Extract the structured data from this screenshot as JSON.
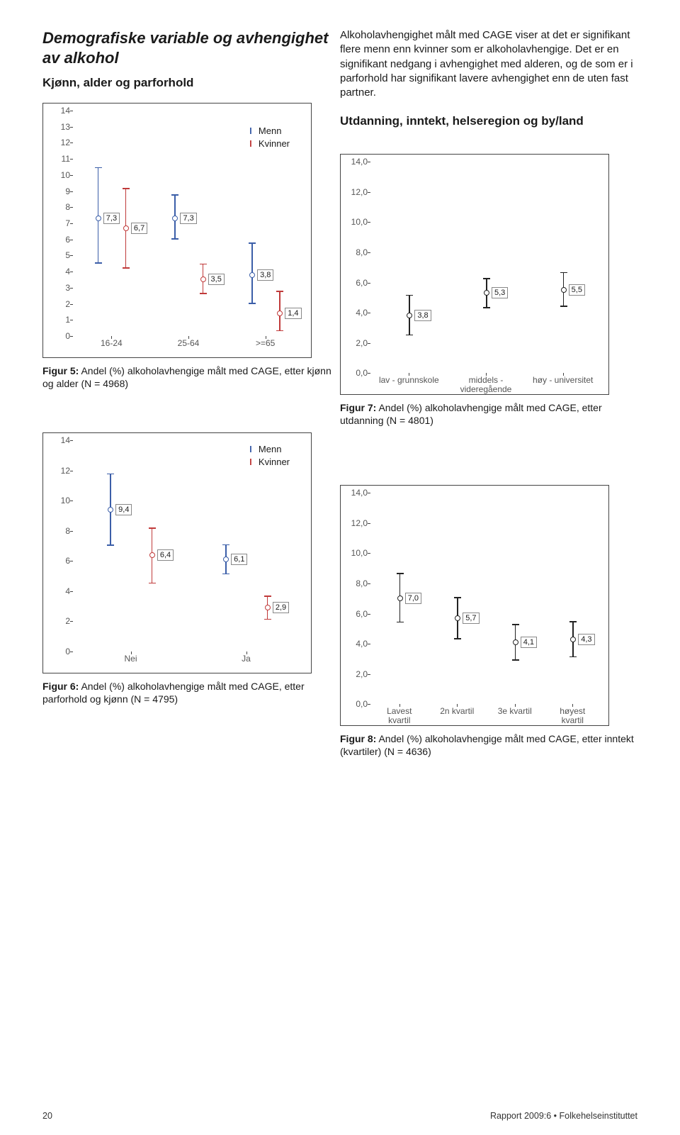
{
  "colors": {
    "menn": "#3b5ea8",
    "kvinner": "#c03a3a",
    "black": "#222222",
    "border": "#444444"
  },
  "header": {
    "main_title": "Demografiske variable og avhengighet av alkohol",
    "sub_title": "Kjønn, alder og parforhold"
  },
  "intro_text": "Alkoholavhengighet målt med CAGE viser at det er signifikant flere menn enn kvinner som er alkoholavhengige. Det er en signifikant nedgang i avhengighet med alderen, og de som er i parforhold har signifikant lavere avhengighet enn de uten fast partner.",
  "sub2": "Utdanning, inntekt, helseregion og by/land",
  "legend": {
    "menn": "Menn",
    "kvinner": "Kvinner"
  },
  "fig5": {
    "caption_bold": "Figur 5:",
    "caption_rest": " Andel (%) alkoholavhengige målt med CAGE, etter kjønn og alder (N = 4968)",
    "ylim": [
      0,
      14
    ],
    "ystep": 1,
    "x_labels": [
      "16-24",
      "25-64",
      ">=65"
    ],
    "series": [
      {
        "group": "menn",
        "x": 0,
        "val": 7.3,
        "lo": 4.5,
        "hi": 10.5,
        "label": "7,3"
      },
      {
        "group": "kvinner",
        "x": 0,
        "val": 6.7,
        "lo": 4.2,
        "hi": 9.2,
        "label": "6,7"
      },
      {
        "group": "menn",
        "x": 1,
        "val": 7.3,
        "lo": 6.0,
        "hi": 8.8,
        "label": "7,3"
      },
      {
        "group": "kvinner",
        "x": 1,
        "val": 3.5,
        "lo": 2.6,
        "hi": 4.5,
        "label": "3,5"
      },
      {
        "group": "menn",
        "x": 2,
        "val": 3.8,
        "lo": 2.0,
        "hi": 5.8,
        "label": "3,8"
      },
      {
        "group": "kvinner",
        "x": 2,
        "val": 1.4,
        "lo": 0.3,
        "hi": 2.8,
        "label": "1,4"
      }
    ]
  },
  "fig6": {
    "caption_bold": "Figur 6:",
    "caption_rest": " Andel (%) alkoholavhengige målt med CAGE, etter parforhold og kjønn (N = 4795)",
    "ylim": [
      0,
      14
    ],
    "ystep": 2,
    "x_labels": [
      "Nei",
      "Ja"
    ],
    "series": [
      {
        "group": "menn",
        "x": 0,
        "val": 9.4,
        "lo": 7.0,
        "hi": 11.8,
        "label": "9,4"
      },
      {
        "group": "kvinner",
        "x": 0,
        "val": 6.4,
        "lo": 4.5,
        "hi": 8.2,
        "label": "6,4"
      },
      {
        "group": "menn",
        "x": 1,
        "val": 6.1,
        "lo": 5.1,
        "hi": 7.1,
        "label": "6,1"
      },
      {
        "group": "kvinner",
        "x": 1,
        "val": 2.9,
        "lo": 2.1,
        "hi": 3.7,
        "label": "2,9"
      }
    ]
  },
  "fig7": {
    "caption_bold": "Figur 7:",
    "caption_rest": " Andel (%) alkoholavhengige målt med CAGE, etter utdanning (N = 4801)",
    "ylim": [
      0,
      14
    ],
    "ystep": 2,
    "decimal": true,
    "x_labels": [
      "lav - grunnskole",
      "middels -\nvideregående",
      "høy - universitet"
    ],
    "series": [
      {
        "group": "black",
        "x": 0,
        "val": 3.8,
        "lo": 2.5,
        "hi": 5.2,
        "label": "3,8"
      },
      {
        "group": "black",
        "x": 1,
        "val": 5.3,
        "lo": 4.3,
        "hi": 6.3,
        "label": "5,3"
      },
      {
        "group": "black",
        "x": 2,
        "val": 5.5,
        "lo": 4.4,
        "hi": 6.7,
        "label": "5,5"
      }
    ]
  },
  "fig8": {
    "caption_bold": "Figur 8:",
    "caption_rest": " Andel (%) alkoholavhengige målt med CAGE, etter inntekt (kvartiler) (N = 4636)",
    "ylim": [
      0,
      14
    ],
    "ystep": 2,
    "decimal": true,
    "x_labels": [
      "Lavest\nkvartil",
      "2n kvartil",
      "3e kvartil",
      "høyest\nkvartil"
    ],
    "series": [
      {
        "group": "black",
        "x": 0,
        "val": 7.0,
        "lo": 5.4,
        "hi": 8.7,
        "label": "7,0"
      },
      {
        "group": "black",
        "x": 1,
        "val": 5.7,
        "lo": 4.3,
        "hi": 7.1,
        "label": "5,7"
      },
      {
        "group": "black",
        "x": 2,
        "val": 4.1,
        "lo": 2.9,
        "hi": 5.3,
        "label": "4,1"
      },
      {
        "group": "black",
        "x": 3,
        "val": 4.3,
        "lo": 3.1,
        "hi": 5.5,
        "label": "4,3"
      }
    ]
  },
  "footer": {
    "page_num": "20",
    "report": "Rapport 2009:6 • Folkehelseinstituttet"
  }
}
